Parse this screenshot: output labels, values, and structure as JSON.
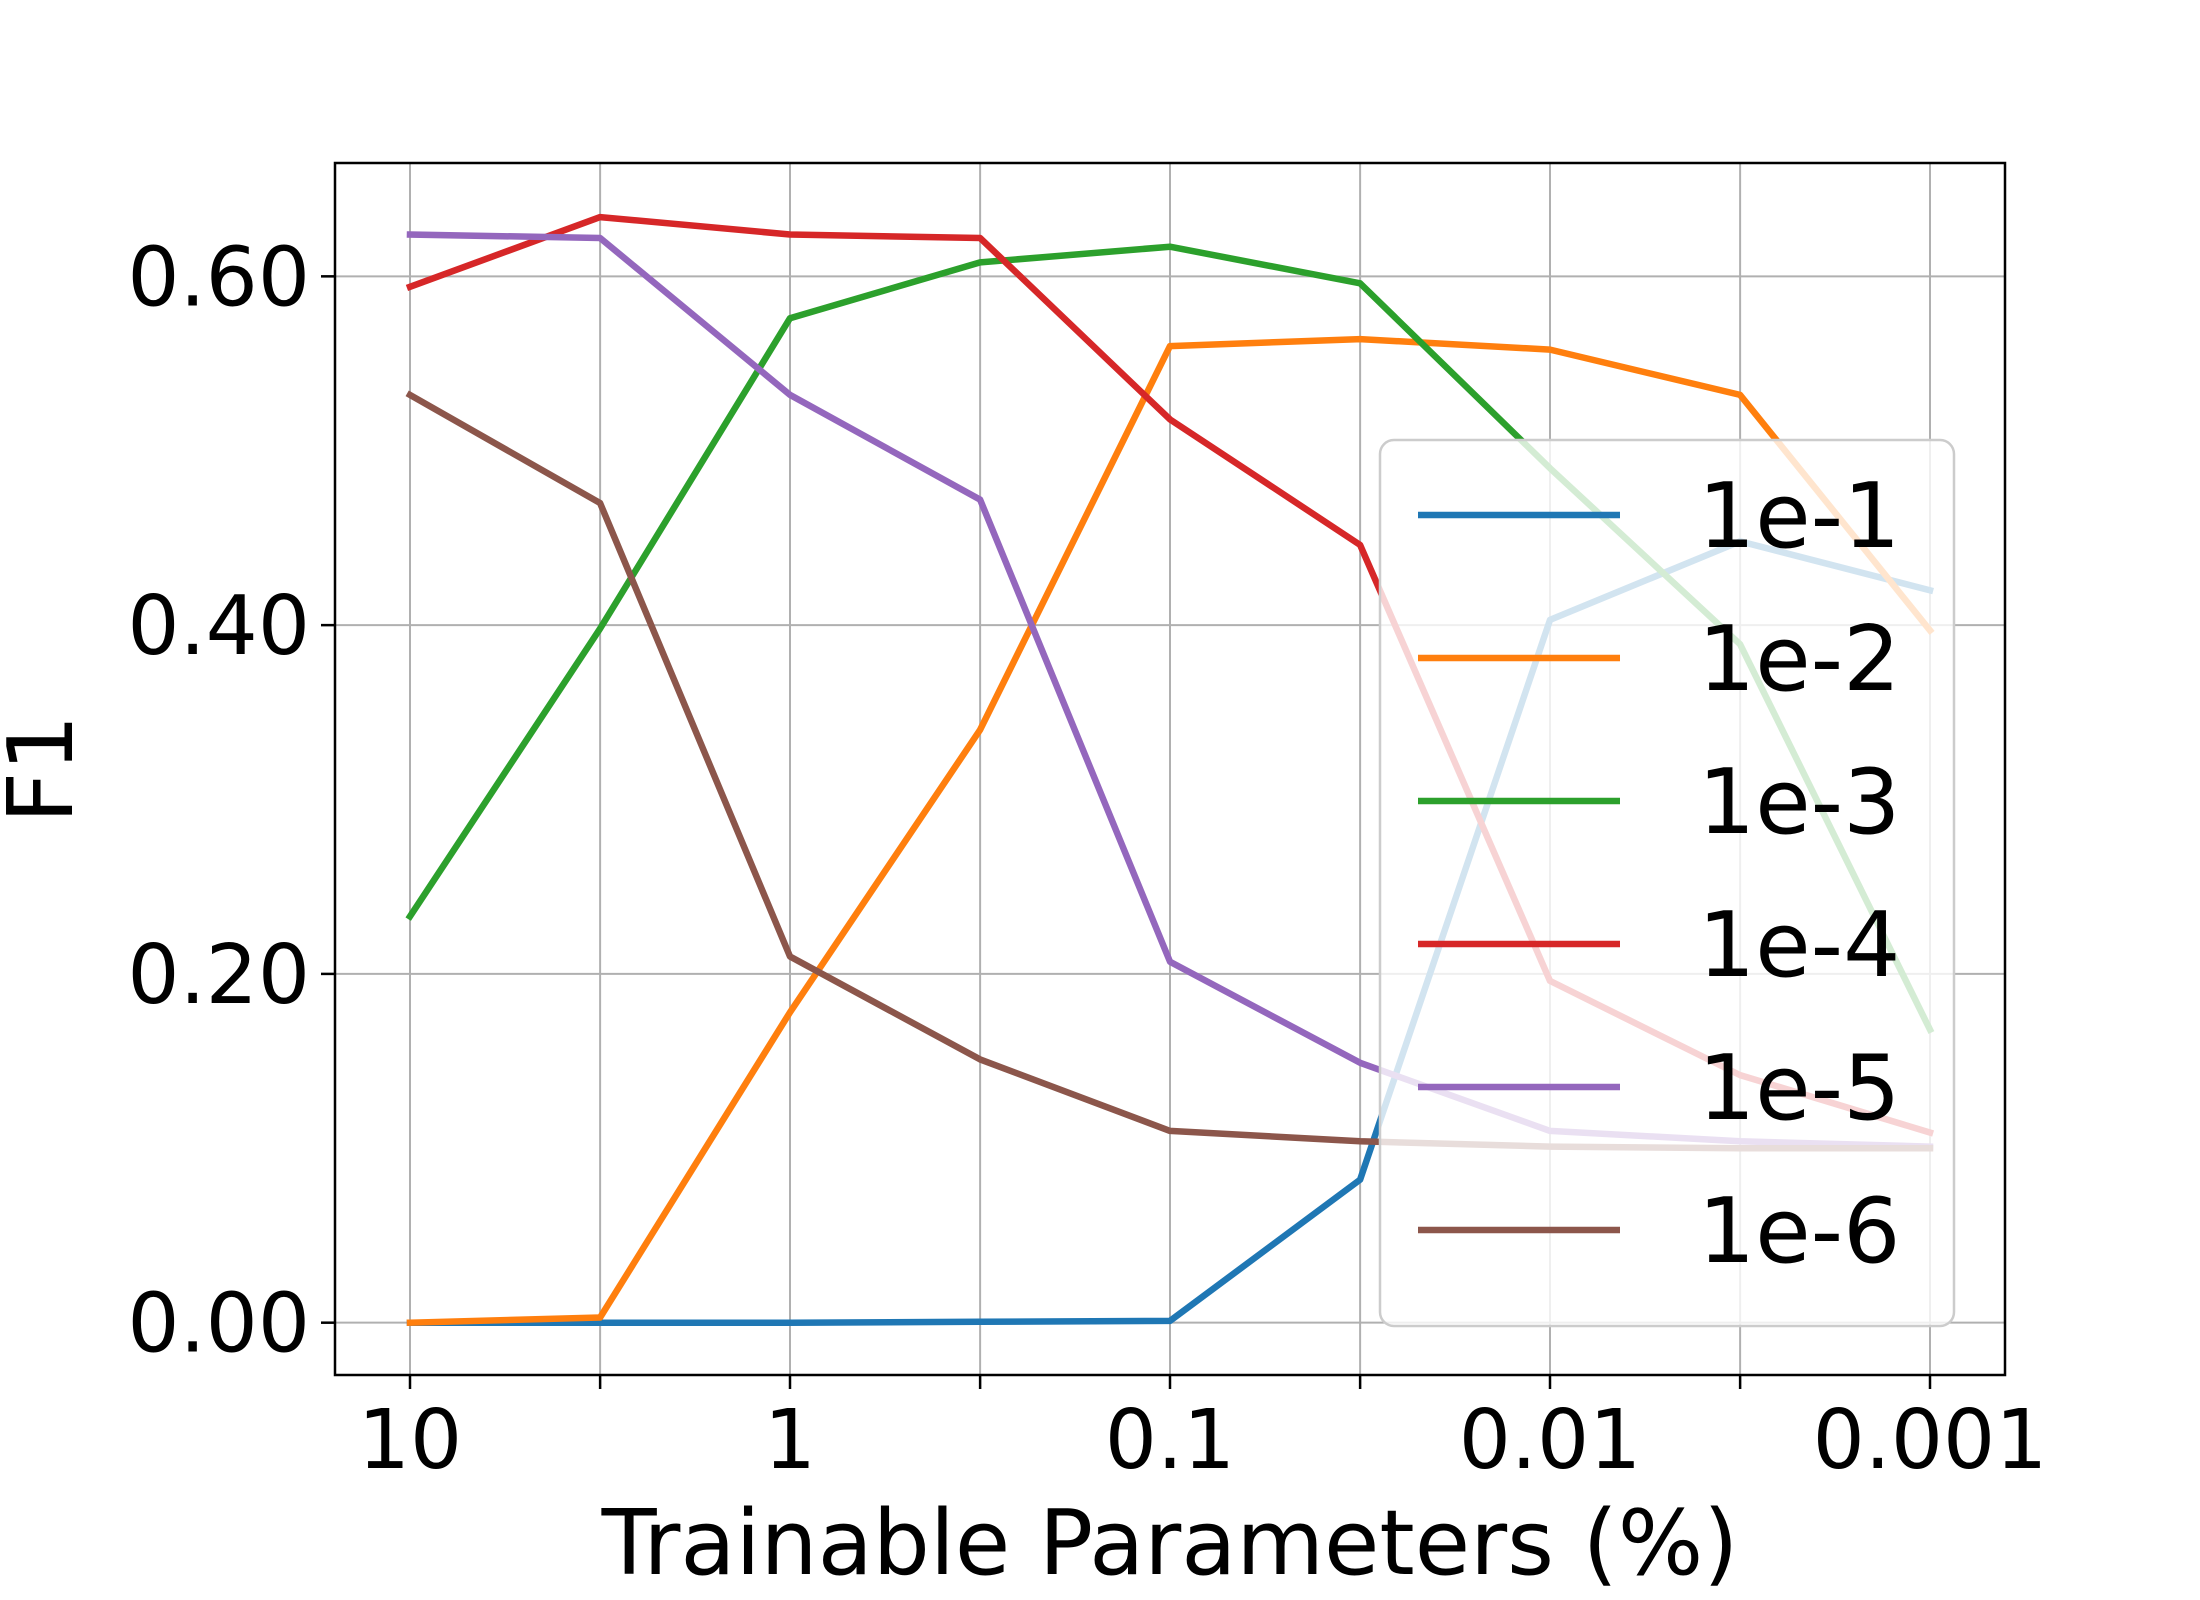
{
  "chart_data": {
    "type": "line",
    "xlabel": "Trainable Parameters (%)",
    "ylabel": "F1",
    "x": [
      10,
      3.16,
      1,
      0.316,
      0.1,
      0.0316,
      0.01,
      0.00316,
      0.001
    ],
    "x_scale": "log",
    "x_direction": "decreasing",
    "x_ticks": [
      10,
      3.16,
      1,
      0.316,
      0.1,
      0.0316,
      0.01,
      0.00316,
      0.001
    ],
    "x_tick_labels": [
      "10",
      "",
      "1",
      "",
      "0.1",
      "",
      "0.01",
      "",
      "0.001"
    ],
    "ylim": [
      -0.03,
      0.665
    ],
    "y_ticks": [
      0.0,
      0.2,
      0.4,
      0.6
    ],
    "y_tick_labels": [
      "0.00",
      "0.20",
      "0.40",
      "0.60"
    ],
    "grid": true,
    "legend_position": "center-right",
    "series": [
      {
        "name": "1e-1",
        "color": "#1f77b4",
        "values": [
          0.0,
          0.0,
          0.0,
          0.0005,
          0.001,
          0.082,
          0.403,
          0.448,
          0.42
        ]
      },
      {
        "name": "1e-2",
        "color": "#ff7f0e",
        "values": [
          0.0,
          0.003,
          0.178,
          0.34,
          0.56,
          0.564,
          0.558,
          0.532,
          0.397
        ]
      },
      {
        "name": "1e-3",
        "color": "#2ca02c",
        "values": [
          0.233,
          0.398,
          0.576,
          0.608,
          0.617,
          0.596,
          0.49,
          0.389,
          0.168
        ]
      },
      {
        "name": "1e-4",
        "color": "#d62728",
        "values": [
          0.594,
          0.634,
          0.624,
          0.622,
          0.518,
          0.446,
          0.196,
          0.142,
          0.109
        ]
      },
      {
        "name": "1e-5",
        "color": "#9467bd",
        "values": [
          0.624,
          0.622,
          0.532,
          0.472,
          0.207,
          0.149,
          0.11,
          0.104,
          0.101
        ]
      },
      {
        "name": "1e-6",
        "color": "#8c564b",
        "values": [
          0.532,
          0.47,
          0.21,
          0.151,
          0.11,
          0.104,
          0.101,
          0.1,
          0.1
        ]
      }
    ]
  }
}
